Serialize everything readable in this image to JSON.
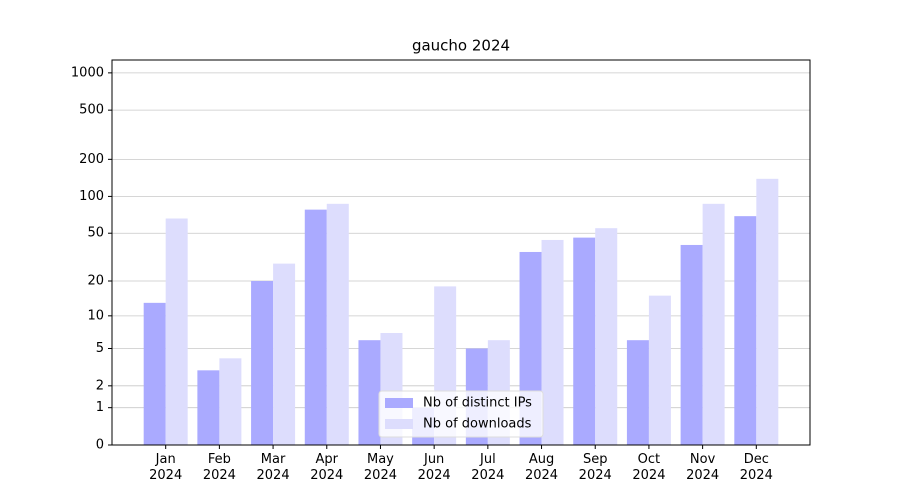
{
  "chart_data": {
    "type": "bar",
    "title": "gaucho 2024",
    "categories": [
      "Jan\n2024",
      "Feb\n2024",
      "Mar\n2024",
      "Apr\n2024",
      "May\n2024",
      "Jun\n2024",
      "Jul\n2024",
      "Aug\n2024",
      "Sep\n2024",
      "Oct\n2024",
      "Nov\n2024",
      "Dec\n2024"
    ],
    "series": [
      {
        "name": "Nb of distinct IPs",
        "color": "#aaaaff",
        "values": [
          13,
          3,
          20,
          78,
          6,
          1,
          5,
          35,
          46,
          6,
          40,
          69
        ]
      },
      {
        "name": "Nb of downloads",
        "color": "#ddddfd",
        "values": [
          66,
          4,
          28,
          87,
          7,
          18,
          6,
          44,
          55,
          15,
          87,
          139
        ]
      }
    ],
    "y_scale": "log1p",
    "ylim": [
      0,
      1270
    ],
    "yticks": [
      0,
      1,
      2,
      5,
      10,
      20,
      50,
      100,
      200,
      500,
      1000
    ],
    "grid": true,
    "legend": "lower center"
  }
}
